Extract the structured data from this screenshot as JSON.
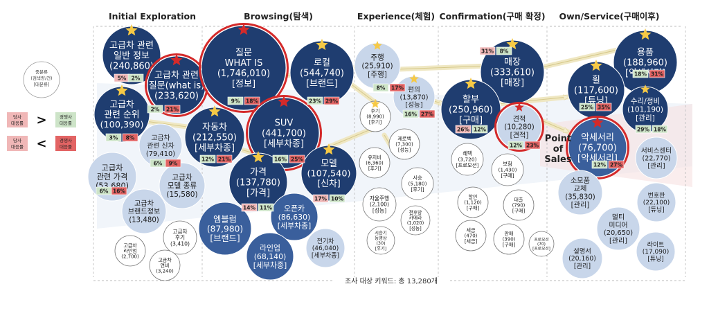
{
  "stages": [
    {
      "label": "Initial Exploration"
    },
    {
      "label": "Browsing(탐색)"
    },
    {
      "label": "Experience(체험)"
    },
    {
      "label": "Confirmation(구매 확정)"
    },
    {
      "label": "Own/Service(구매이후)"
    }
  ],
  "legend": {
    "classification": [
      "중분류",
      "(검색량/건)",
      "[대분류]"
    ],
    "rows": [
      {
        "left": [
          "당사",
          "대응률"
        ],
        "sign": ">",
        "right": [
          "경쟁사",
          "대응률"
        ]
      },
      {
        "left": [
          "당사",
          "대응률"
        ],
        "sign": "<",
        "right": [
          "경쟁사",
          "대응률"
        ]
      }
    ]
  },
  "colors": {
    "dark": "#1f3d70",
    "mid": "#3a5f9c",
    "light": "#c8d6ea",
    "white": "#ffffff",
    "red": "#d42a2a",
    "star_gold": "#f6c945",
    "star_red": "#d42a2a",
    "green": "#cde4c8",
    "pink": "#f0b7b7",
    "red_bg": "#e36464"
  },
  "point_of_sales": [
    "Point",
    "of",
    "Sales"
  ],
  "footer": "조사 대상 키워드: 총 13,280개",
  "bubbles": [
    {
      "id": "b1",
      "lines": [
        "고급차 관련",
        "일반 정보",
        "(240,860)"
      ],
      "style": "dark",
      "star": "gold"
    },
    {
      "id": "b2",
      "lines": [
        "고급차 관련",
        "질문(what is)",
        "(233,620)"
      ],
      "style": "dark",
      "ring": true,
      "star": "red"
    },
    {
      "id": "b3",
      "lines": [
        "고급차",
        "관련 순위",
        "(100,390)"
      ],
      "style": "dark",
      "star": "gold"
    },
    {
      "id": "b4",
      "lines": [
        "고급차",
        "관련 신차",
        "(79,410)"
      ],
      "style": "light"
    },
    {
      "id": "b5",
      "lines": [
        "고급차",
        "관련 가격",
        "(53,680)"
      ],
      "style": "light"
    },
    {
      "id": "b6",
      "lines": [
        "고급차",
        "모델 종류",
        "(15,580)"
      ],
      "style": "light"
    },
    {
      "id": "b7",
      "lines": [
        "고급차",
        "브랜드정보",
        "(13,480)"
      ],
      "style": "light"
    },
    {
      "id": "b8",
      "lines": [
        "고급차",
        "후기",
        "(3,410)"
      ],
      "style": "white"
    },
    {
      "id": "b9",
      "lines": [
        "고급차",
        "라인업",
        "(2,700)"
      ],
      "style": "white"
    },
    {
      "id": "b10",
      "lines": [
        "고급차",
        "연비",
        "(3,240)"
      ],
      "style": "white"
    },
    {
      "id": "b11",
      "lines": [
        "질문",
        "WHAT IS",
        "(1,746,010)",
        "[정보]"
      ],
      "style": "dark",
      "ring": true,
      "star": "red"
    },
    {
      "id": "b12",
      "lines": [
        "로컬",
        "(544,740)",
        "[브랜드]"
      ],
      "style": "dark",
      "star": "gold"
    },
    {
      "id": "b13",
      "lines": [
        "자동차",
        "(212,550)",
        "[세부차종]"
      ],
      "style": "dark",
      "star": "gold"
    },
    {
      "id": "b14",
      "lines": [
        "SUV",
        "(441,700)",
        "[세부차종]"
      ],
      "style": "dark",
      "ring": true,
      "star": "red"
    },
    {
      "id": "b15",
      "lines": [
        "가격",
        "(137,780)",
        "[가격]"
      ],
      "style": "dark",
      "star": "gold"
    },
    {
      "id": "b16",
      "lines": [
        "모델",
        "(107,540)",
        "[신차]"
      ],
      "style": "dark",
      "star": "gold"
    },
    {
      "id": "b17",
      "lines": [
        "엠블럼",
        "(87,980)",
        "[브랜드]"
      ],
      "style": "mid"
    },
    {
      "id": "b18",
      "lines": [
        "오픈카",
        "(86,630)",
        "[세부차종]"
      ],
      "style": "mid"
    },
    {
      "id": "b19",
      "lines": [
        "라인업",
        "(68,140)",
        "[세부차종]"
      ],
      "style": "mid"
    },
    {
      "id": "b20",
      "lines": [
        "전기차",
        "(46,040)",
        "[세부차종]"
      ],
      "style": "light"
    },
    {
      "id": "b21",
      "lines": [
        "주행",
        "(25,910)",
        "[주행]"
      ],
      "style": "light",
      "star": "gold"
    },
    {
      "id": "b22",
      "lines": [
        "편의",
        "(13,870)",
        "[성능]"
      ],
      "style": "light",
      "star": "gold"
    },
    {
      "id": "b23",
      "lines": [
        "후기",
        "(8,990)",
        "[후기]"
      ],
      "style": "white",
      "star": "gold"
    },
    {
      "id": "b24",
      "lines": [
        "유지비",
        "(6,360)",
        "[후기]"
      ],
      "style": "white"
    },
    {
      "id": "b25",
      "lines": [
        "제로백",
        "(7,300)",
        "[성능]"
      ],
      "style": "white"
    },
    {
      "id": "b26",
      "lines": [
        "시승",
        "(5,180)",
        "[후기]"
      ],
      "style": "white"
    },
    {
      "id": "b27",
      "lines": [
        "자율주행",
        "(2,100)",
        "[성능]"
      ],
      "style": "white"
    },
    {
      "id": "b28",
      "lines": [
        "전후방",
        "카메라",
        "(1,020)",
        "[성능]"
      ],
      "style": "white"
    },
    {
      "id": "b29",
      "lines": [
        "시승기",
        "동영상",
        "(30)",
        "[후기]"
      ],
      "style": "white"
    },
    {
      "id": "b30",
      "lines": [
        "매장",
        "(333,610)",
        "[매장]"
      ],
      "style": "dark",
      "star": "gold"
    },
    {
      "id": "b31",
      "lines": [
        "할부",
        "(250,960)",
        "[구매]"
      ],
      "style": "dark",
      "star": "gold"
    },
    {
      "id": "b32",
      "lines": [
        "견적",
        "(10,280)",
        "[견적]"
      ],
      "style": "light",
      "ring": true,
      "star": "red"
    },
    {
      "id": "b33",
      "lines": [
        "혜택",
        "(3,720)",
        "[프로모션]"
      ],
      "style": "white"
    },
    {
      "id": "b34",
      "lines": [
        "보험",
        "(1,430)",
        "[구매]"
      ],
      "style": "white"
    },
    {
      "id": "b35",
      "lines": [
        "할인",
        "(1,120)",
        "[구매]"
      ],
      "style": "white"
    },
    {
      "id": "b36",
      "lines": [
        "대출",
        "(790)",
        "[구매]"
      ],
      "style": "white"
    },
    {
      "id": "b37",
      "lines": [
        "세금",
        "(470)",
        "[세금]"
      ],
      "style": "white"
    },
    {
      "id": "b38",
      "lines": [
        "판매",
        "(390)",
        "[구매]"
      ],
      "style": "white"
    },
    {
      "id": "b39",
      "lines": [
        "프로모션",
        "(70)",
        "[프로모션]"
      ],
      "style": "white"
    },
    {
      "id": "b40",
      "lines": [
        "용품",
        "(188,960)",
        "[악세서리]"
      ],
      "style": "dark",
      "star": "gold"
    },
    {
      "id": "b41",
      "lines": [
        "휠",
        "(117,600)",
        "[튜닝]"
      ],
      "style": "dark",
      "star": "gold"
    },
    {
      "id": "b42",
      "lines": [
        "수리/정비",
        "(101,190)",
        "[관리]"
      ],
      "style": "dark",
      "star": "gold"
    },
    {
      "id": "b43",
      "lines": [
        "악세서리",
        "(76,700)",
        "[악세서리]"
      ],
      "style": "mid",
      "ring": true,
      "star": "red"
    },
    {
      "id": "b44",
      "lines": [
        "서비스센터",
        "(22,770)",
        "[관리]"
      ],
      "style": "light"
    },
    {
      "id": "b45",
      "lines": [
        "소모품",
        "교체",
        "(35,830)",
        "[관리]"
      ],
      "style": "light"
    },
    {
      "id": "b46",
      "lines": [
        "번호판",
        "(22,100)",
        "[튜닝]"
      ],
      "style": "light"
    },
    {
      "id": "b47",
      "lines": [
        "멀티",
        "미디어",
        "(20,650)",
        "[관리]"
      ],
      "style": "light"
    },
    {
      "id": "b48",
      "lines": [
        "설명서",
        "(20,160)",
        "[관리]"
      ],
      "style": "light"
    },
    {
      "id": "b49",
      "lines": [
        "라이트",
        "(17,090)",
        "[튜닝]"
      ],
      "style": "light"
    }
  ],
  "badges": [
    {
      "id": "g1",
      "text": "5%",
      "style": "pink"
    },
    {
      "id": "g2",
      "text": "2%",
      "style": "green"
    },
    {
      "id": "g3",
      "text": "2%",
      "style": "green"
    },
    {
      "id": "g4",
      "text": "21%",
      "style": "red"
    },
    {
      "id": "g5",
      "text": "3%",
      "style": "green"
    },
    {
      "id": "g6",
      "text": "8%",
      "style": "red"
    },
    {
      "id": "g7",
      "text": "6%",
      "style": "green"
    },
    {
      "id": "g8",
      "text": "9%",
      "style": "red"
    },
    {
      "id": "g9",
      "text": "6%",
      "style": "green"
    },
    {
      "id": "g10",
      "text": "16%",
      "style": "red"
    },
    {
      "id": "g11",
      "text": "9%",
      "style": "green"
    },
    {
      "id": "g12",
      "text": "18%",
      "style": "red"
    },
    {
      "id": "g13",
      "text": "23%",
      "style": "green"
    },
    {
      "id": "g14",
      "text": "29%",
      "style": "red"
    },
    {
      "id": "g15",
      "text": "12%",
      "style": "green"
    },
    {
      "id": "g16",
      "text": "21%",
      "style": "red"
    },
    {
      "id": "g17",
      "text": "16%",
      "style": "green"
    },
    {
      "id": "g18",
      "text": "25%",
      "style": "red"
    },
    {
      "id": "g19",
      "text": "14%",
      "style": "pink"
    },
    {
      "id": "g20",
      "text": "11%",
      "style": "green"
    },
    {
      "id": "g21",
      "text": "17%",
      "style": "pink"
    },
    {
      "id": "g22",
      "text": "10%",
      "style": "green"
    },
    {
      "id": "g23",
      "text": "8%",
      "style": "green"
    },
    {
      "id": "g24",
      "text": "17%",
      "style": "red"
    },
    {
      "id": "g25",
      "text": "16%",
      "style": "green"
    },
    {
      "id": "g26",
      "text": "27%",
      "style": "red"
    },
    {
      "id": "g27",
      "text": "31%",
      "style": "pink"
    },
    {
      "id": "g28",
      "text": "8%",
      "style": "green"
    },
    {
      "id": "g29",
      "text": "26%",
      "style": "pink"
    },
    {
      "id": "g30",
      "text": "12%",
      "style": "green"
    },
    {
      "id": "g31",
      "text": "12%",
      "style": "green"
    },
    {
      "id": "g32",
      "text": "23%",
      "style": "red"
    },
    {
      "id": "g33",
      "text": "18%",
      "style": "green"
    },
    {
      "id": "g34",
      "text": "31%",
      "style": "red"
    },
    {
      "id": "g35",
      "text": "25%",
      "style": "green"
    },
    {
      "id": "g36",
      "text": "35%",
      "style": "red"
    },
    {
      "id": "g37",
      "text": "29%",
      "style": "green"
    },
    {
      "id": "g38",
      "text": "18%",
      "style": "green"
    },
    {
      "id": "g39",
      "text": "12%",
      "style": "green"
    },
    {
      "id": "g40",
      "text": "27%",
      "style": "red"
    }
  ]
}
